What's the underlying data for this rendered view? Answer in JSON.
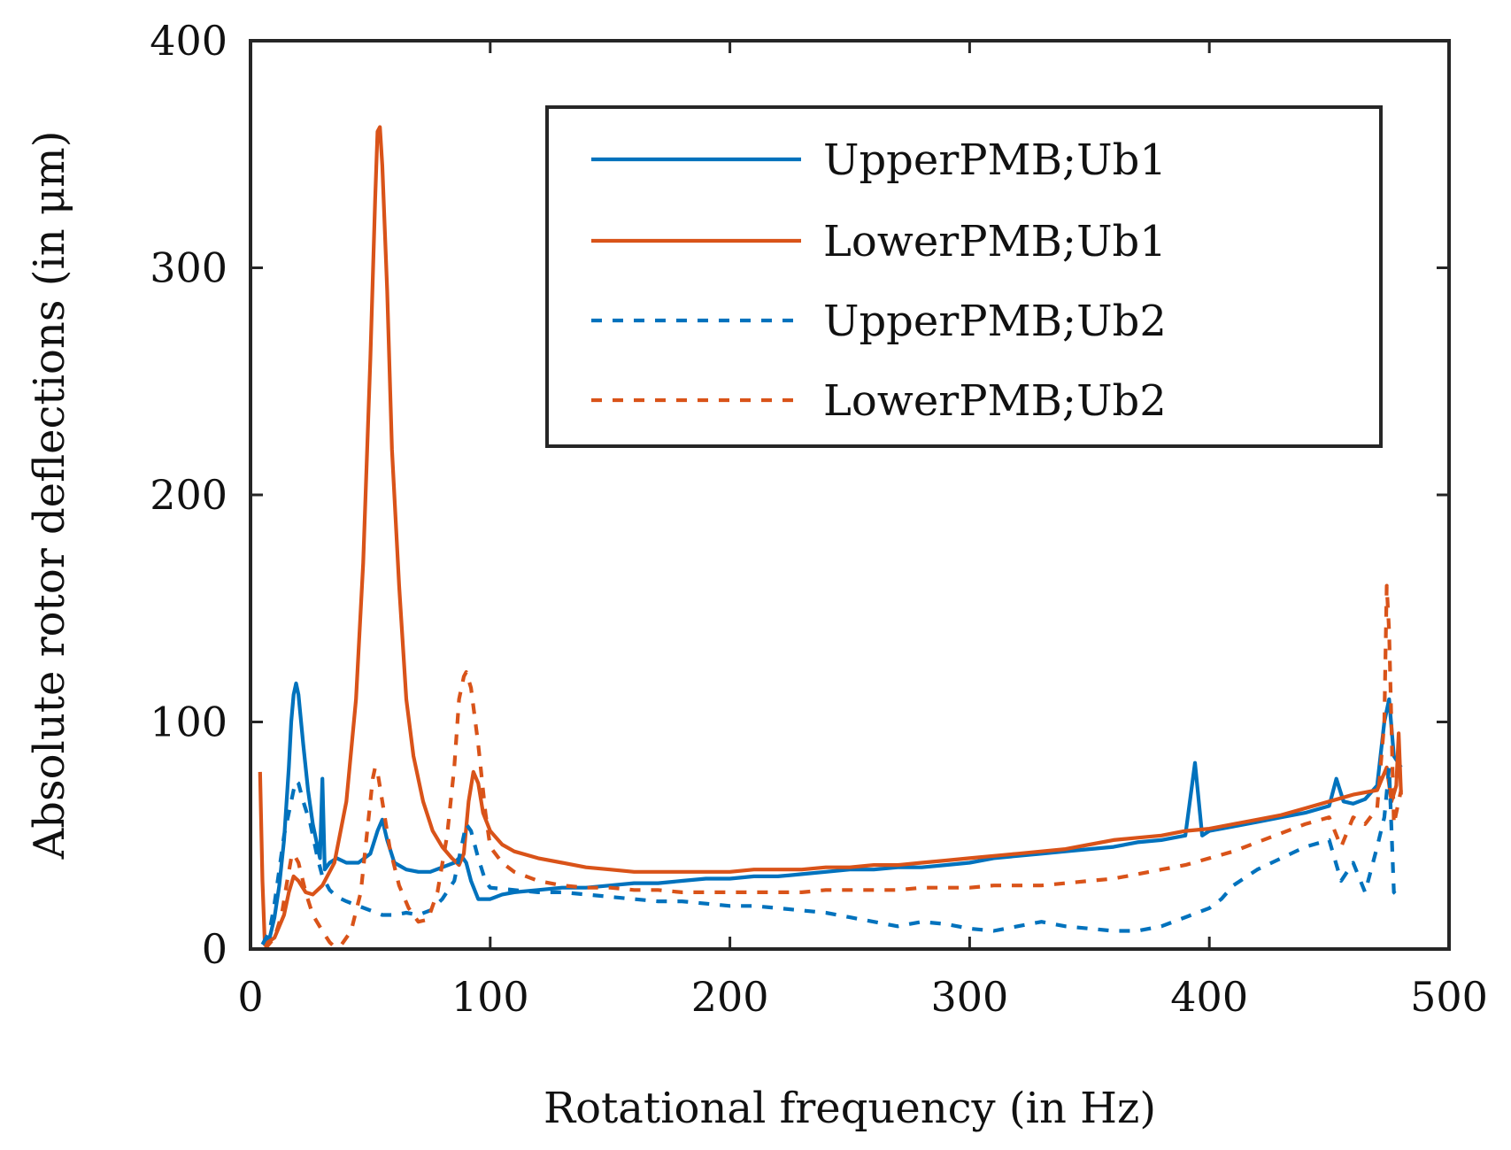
{
  "chart_data": {
    "type": "line",
    "xlabel": "Rotational frequency (in Hz)",
    "ylabel": "Absolute rotor deflections (in μm)",
    "xlim": [
      0,
      500
    ],
    "ylim": [
      0,
      400
    ],
    "xticks": [
      0,
      100,
      200,
      300,
      400,
      500
    ],
    "yticks": [
      0,
      100,
      200,
      300,
      400
    ],
    "xtick_labels": [
      "0",
      "100",
      "200",
      "300",
      "400",
      "500"
    ],
    "ytick_labels": [
      "0",
      "100",
      "200",
      "300",
      "400"
    ],
    "grid": false,
    "legend_position": "top-right",
    "series": [
      {
        "name": "UpperPMB;Ub1",
        "color": "#0072BD",
        "dash": "solid",
        "points": [
          [
            5,
            2
          ],
          [
            8,
            5
          ],
          [
            10,
            14
          ],
          [
            12,
            28
          ],
          [
            14,
            48
          ],
          [
            16,
            80
          ],
          [
            17,
            100
          ],
          [
            18,
            112
          ],
          [
            19,
            117
          ],
          [
            20,
            112
          ],
          [
            22,
            90
          ],
          [
            24,
            70
          ],
          [
            26,
            55
          ],
          [
            28,
            45
          ],
          [
            29,
            40
          ],
          [
            30,
            75
          ],
          [
            31,
            35
          ],
          [
            33,
            38
          ],
          [
            36,
            40
          ],
          [
            40,
            38
          ],
          [
            45,
            38
          ],
          [
            50,
            42
          ],
          [
            53,
            52
          ],
          [
            55,
            57
          ],
          [
            57,
            48
          ],
          [
            60,
            38
          ],
          [
            65,
            35
          ],
          [
            70,
            34
          ],
          [
            75,
            34
          ],
          [
            80,
            36
          ],
          [
            85,
            38
          ],
          [
            88,
            41
          ],
          [
            90,
            38
          ],
          [
            92,
            30
          ],
          [
            95,
            22
          ],
          [
            100,
            22
          ],
          [
            105,
            24
          ],
          [
            110,
            25
          ],
          [
            120,
            26
          ],
          [
            130,
            27
          ],
          [
            140,
            27
          ],
          [
            150,
            28
          ],
          [
            160,
            29
          ],
          [
            170,
            29
          ],
          [
            180,
            30
          ],
          [
            190,
            31
          ],
          [
            200,
            31
          ],
          [
            210,
            32
          ],
          [
            220,
            32
          ],
          [
            230,
            33
          ],
          [
            240,
            34
          ],
          [
            250,
            35
          ],
          [
            260,
            35
          ],
          [
            270,
            36
          ],
          [
            280,
            36
          ],
          [
            290,
            37
          ],
          [
            300,
            38
          ],
          [
            310,
            40
          ],
          [
            320,
            41
          ],
          [
            330,
            42
          ],
          [
            340,
            43
          ],
          [
            350,
            44
          ],
          [
            360,
            45
          ],
          [
            370,
            47
          ],
          [
            380,
            48
          ],
          [
            390,
            50
          ],
          [
            394,
            82
          ],
          [
            397,
            50
          ],
          [
            400,
            52
          ],
          [
            410,
            54
          ],
          [
            420,
            56
          ],
          [
            430,
            58
          ],
          [
            440,
            60
          ],
          [
            450,
            63
          ],
          [
            453,
            75
          ],
          [
            456,
            65
          ],
          [
            460,
            64
          ],
          [
            465,
            66
          ],
          [
            470,
            72
          ],
          [
            473,
            100
          ],
          [
            475,
            110
          ],
          [
            477,
            85
          ],
          [
            480,
            80
          ]
        ]
      },
      {
        "name": "LowerPMB;Ub1",
        "color": "#D95319",
        "dash": "solid",
        "points": [
          [
            4,
            78
          ],
          [
            5,
            30
          ],
          [
            6,
            2
          ],
          [
            10,
            5
          ],
          [
            14,
            15
          ],
          [
            16,
            25
          ],
          [
            18,
            32
          ],
          [
            20,
            30
          ],
          [
            23,
            25
          ],
          [
            26,
            24
          ],
          [
            30,
            28
          ],
          [
            35,
            38
          ],
          [
            40,
            65
          ],
          [
            44,
            110
          ],
          [
            47,
            170
          ],
          [
            50,
            260
          ],
          [
            52,
            330
          ],
          [
            53,
            360
          ],
          [
            54,
            362
          ],
          [
            55,
            345
          ],
          [
            57,
            290
          ],
          [
            59,
            220
          ],
          [
            62,
            160
          ],
          [
            65,
            110
          ],
          [
            68,
            85
          ],
          [
            72,
            65
          ],
          [
            76,
            52
          ],
          [
            80,
            45
          ],
          [
            84,
            40
          ],
          [
            87,
            37
          ],
          [
            89,
            42
          ],
          [
            91,
            65
          ],
          [
            93,
            78
          ],
          [
            95,
            73
          ],
          [
            97,
            60
          ],
          [
            100,
            52
          ],
          [
            105,
            46
          ],
          [
            110,
            43
          ],
          [
            120,
            40
          ],
          [
            130,
            38
          ],
          [
            140,
            36
          ],
          [
            150,
            35
          ],
          [
            160,
            34
          ],
          [
            170,
            34
          ],
          [
            180,
            34
          ],
          [
            190,
            34
          ],
          [
            200,
            34
          ],
          [
            210,
            35
          ],
          [
            220,
            35
          ],
          [
            230,
            35
          ],
          [
            240,
            36
          ],
          [
            250,
            36
          ],
          [
            260,
            37
          ],
          [
            270,
            37
          ],
          [
            280,
            38
          ],
          [
            290,
            39
          ],
          [
            300,
            40
          ],
          [
            310,
            41
          ],
          [
            320,
            42
          ],
          [
            330,
            43
          ],
          [
            340,
            44
          ],
          [
            350,
            46
          ],
          [
            360,
            48
          ],
          [
            370,
            49
          ],
          [
            380,
            50
          ],
          [
            390,
            52
          ],
          [
            400,
            53
          ],
          [
            410,
            55
          ],
          [
            420,
            57
          ],
          [
            430,
            59
          ],
          [
            440,
            62
          ],
          [
            450,
            65
          ],
          [
            460,
            68
          ],
          [
            470,
            70
          ],
          [
            474,
            80
          ],
          [
            476,
            65
          ],
          [
            478,
            72
          ],
          [
            479,
            95
          ],
          [
            480,
            68
          ]
        ]
      },
      {
        "name": "UpperPMB;Ub2",
        "color": "#0072BD",
        "dash": "dotted",
        "points": [
          [
            5,
            2
          ],
          [
            8,
            8
          ],
          [
            10,
            20
          ],
          [
            12,
            35
          ],
          [
            14,
            50
          ],
          [
            16,
            60
          ],
          [
            18,
            70
          ],
          [
            19,
            74
          ],
          [
            20,
            73
          ],
          [
            22,
            65
          ],
          [
            25,
            55
          ],
          [
            28,
            40
          ],
          [
            30,
            32
          ],
          [
            33,
            26
          ],
          [
            36,
            23
          ],
          [
            40,
            21
          ],
          [
            45,
            19
          ],
          [
            50,
            17
          ],
          [
            55,
            15
          ],
          [
            60,
            15
          ],
          [
            65,
            16
          ],
          [
            70,
            15
          ],
          [
            75,
            17
          ],
          [
            80,
            22
          ],
          [
            85,
            30
          ],
          [
            88,
            45
          ],
          [
            90,
            55
          ],
          [
            92,
            52
          ],
          [
            95,
            40
          ],
          [
            98,
            30
          ],
          [
            100,
            27
          ],
          [
            110,
            26
          ],
          [
            120,
            25
          ],
          [
            130,
            25
          ],
          [
            140,
            24
          ],
          [
            150,
            23
          ],
          [
            160,
            22
          ],
          [
            170,
            21
          ],
          [
            180,
            21
          ],
          [
            190,
            20
          ],
          [
            200,
            19
          ],
          [
            210,
            19
          ],
          [
            220,
            18
          ],
          [
            230,
            17
          ],
          [
            240,
            16
          ],
          [
            250,
            14
          ],
          [
            260,
            12
          ],
          [
            270,
            10
          ],
          [
            280,
            12
          ],
          [
            290,
            11
          ],
          [
            300,
            9
          ],
          [
            310,
            8
          ],
          [
            320,
            10
          ],
          [
            330,
            12
          ],
          [
            340,
            10
          ],
          [
            350,
            9
          ],
          [
            360,
            8
          ],
          [
            370,
            8
          ],
          [
            380,
            10
          ],
          [
            390,
            14
          ],
          [
            400,
            18
          ],
          [
            405,
            22
          ],
          [
            410,
            28
          ],
          [
            420,
            35
          ],
          [
            430,
            40
          ],
          [
            440,
            45
          ],
          [
            450,
            48
          ],
          [
            455,
            30
          ],
          [
            460,
            38
          ],
          [
            465,
            25
          ],
          [
            470,
            45
          ],
          [
            473,
            58
          ],
          [
            475,
            80
          ],
          [
            477,
            25
          ],
          [
            480,
            22
          ]
        ]
      },
      {
        "name": "LowerPMB;Ub2",
        "color": "#D95319",
        "dash": "dotted",
        "points": [
          [
            6,
            0
          ],
          [
            10,
            5
          ],
          [
            13,
            15
          ],
          [
            15,
            28
          ],
          [
            17,
            40
          ],
          [
            18,
            42
          ],
          [
            20,
            38
          ],
          [
            23,
            25
          ],
          [
            26,
            15
          ],
          [
            30,
            8
          ],
          [
            33,
            3
          ],
          [
            35,
            1
          ],
          [
            38,
            2
          ],
          [
            42,
            8
          ],
          [
            46,
            25
          ],
          [
            49,
            55
          ],
          [
            51,
            75
          ],
          [
            52,
            80
          ],
          [
            53,
            78
          ],
          [
            55,
            65
          ],
          [
            58,
            45
          ],
          [
            62,
            28
          ],
          [
            66,
            18
          ],
          [
            70,
            12
          ],
          [
            74,
            13
          ],
          [
            78,
            25
          ],
          [
            82,
            50
          ],
          [
            85,
            80
          ],
          [
            87,
            110
          ],
          [
            89,
            120
          ],
          [
            90,
            122
          ],
          [
            92,
            115
          ],
          [
            95,
            90
          ],
          [
            98,
            60
          ],
          [
            100,
            45
          ],
          [
            105,
            38
          ],
          [
            110,
            34
          ],
          [
            120,
            30
          ],
          [
            130,
            28
          ],
          [
            140,
            27
          ],
          [
            150,
            27
          ],
          [
            160,
            26
          ],
          [
            170,
            26
          ],
          [
            180,
            25
          ],
          [
            190,
            25
          ],
          [
            200,
            25
          ],
          [
            210,
            25
          ],
          [
            220,
            25
          ],
          [
            230,
            25
          ],
          [
            240,
            26
          ],
          [
            250,
            26
          ],
          [
            260,
            26
          ],
          [
            270,
            26
          ],
          [
            280,
            27
          ],
          [
            290,
            27
          ],
          [
            300,
            27
          ],
          [
            310,
            28
          ],
          [
            320,
            28
          ],
          [
            330,
            28
          ],
          [
            340,
            29
          ],
          [
            350,
            30
          ],
          [
            360,
            31
          ],
          [
            370,
            33
          ],
          [
            380,
            35
          ],
          [
            390,
            37
          ],
          [
            400,
            40
          ],
          [
            410,
            43
          ],
          [
            420,
            47
          ],
          [
            430,
            51
          ],
          [
            440,
            55
          ],
          [
            450,
            58
          ],
          [
            455,
            45
          ],
          [
            460,
            58
          ],
          [
            465,
            55
          ],
          [
            470,
            62
          ],
          [
            473,
            100
          ],
          [
            474,
            160
          ],
          [
            475,
            140
          ],
          [
            477,
            55
          ],
          [
            480,
            70
          ]
        ]
      }
    ]
  }
}
